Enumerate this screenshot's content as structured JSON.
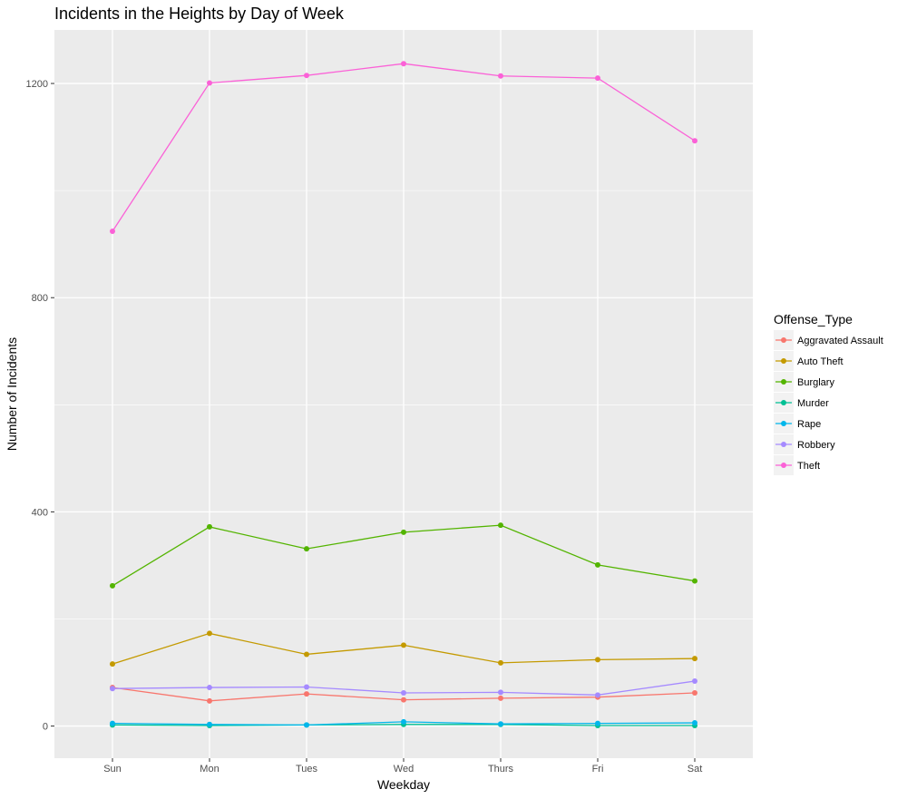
{
  "chart_data": {
    "type": "line",
    "title": "Incidents in the Heights by Day of Week",
    "xlabel": "Weekday",
    "ylabel": "Number of Incidents",
    "categories": [
      "Sun",
      "Mon",
      "Tues",
      "Wed",
      "Thurs",
      "Fri",
      "Sat"
    ],
    "yticks": [
      0,
      400,
      800,
      1200
    ],
    "ylim": [
      -60,
      1300
    ],
    "grid": true,
    "legend": {
      "title": "Offense_Type",
      "position": "right"
    },
    "series": [
      {
        "name": "Aggravated Assault",
        "color": "#F8766D",
        "values": [
          72,
          47,
          60,
          49,
          52,
          54,
          62
        ]
      },
      {
        "name": "Auto Theft",
        "color": "#C49A00",
        "values": [
          116,
          173,
          134,
          151,
          118,
          124,
          126
        ]
      },
      {
        "name": "Burglary",
        "color": "#53B400",
        "values": [
          262,
          372,
          331,
          362,
          375,
          301,
          271
        ]
      },
      {
        "name": "Murder",
        "color": "#00C094",
        "values": [
          2,
          1,
          2,
          3,
          3,
          1,
          1
        ]
      },
      {
        "name": "Rape",
        "color": "#00B6EB",
        "values": [
          5,
          3,
          2,
          8,
          4,
          5,
          6
        ]
      },
      {
        "name": "Robbery",
        "color": "#A58AFF",
        "values": [
          70,
          72,
          73,
          62,
          63,
          58,
          84
        ]
      },
      {
        "name": "Theft",
        "color": "#FB61D7",
        "values": [
          924,
          1201,
          1215,
          1237,
          1214,
          1210,
          1093
        ]
      }
    ]
  }
}
